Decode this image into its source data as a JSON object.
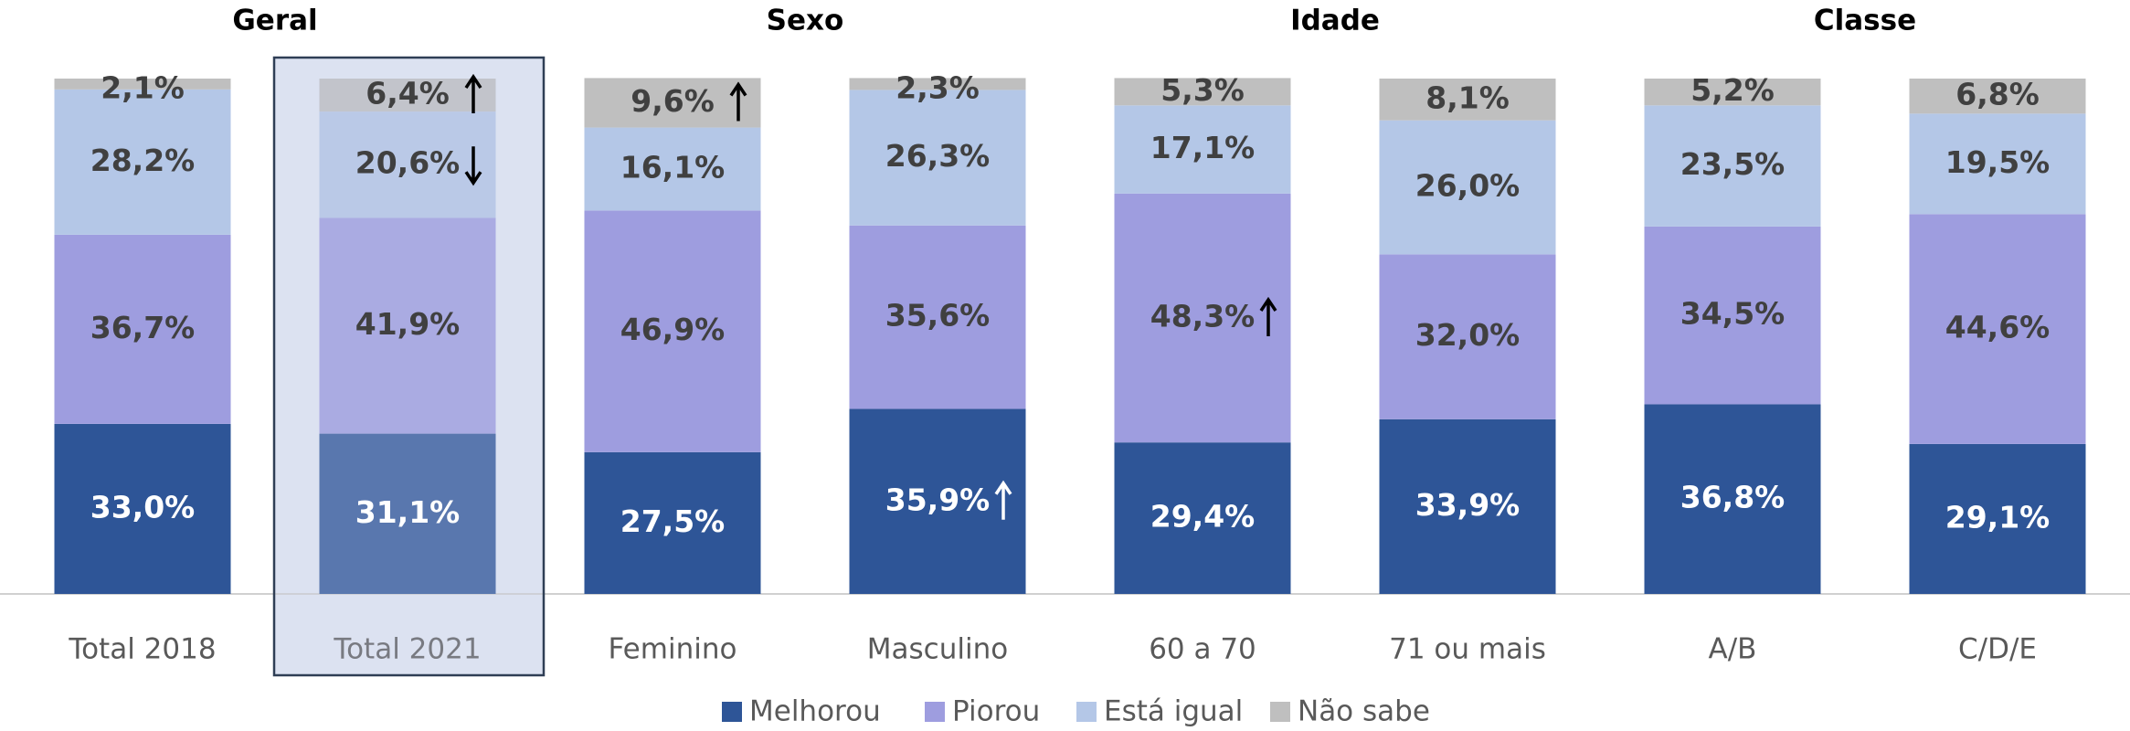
{
  "chart_data": {
    "type": "stacked_bar",
    "groups": [
      "Geral",
      "Sexo",
      "Idade",
      "Classe"
    ],
    "categories": [
      "Total 2018",
      "Total 2021",
      "Feminino",
      "Masculino",
      "60 a 70",
      "71 ou mais",
      "A/B",
      "C/D/E"
    ],
    "ylim": [
      0,
      100
    ],
    "series": [
      {
        "name": "Melhorou",
        "color": "#2e5597",
        "values": [
          33.0,
          31.1,
          27.5,
          35.9,
          29.4,
          33.9,
          36.8,
          29.1
        ],
        "value_labels": [
          "33,0%",
          "31,1%",
          "27,5%",
          "35,9%",
          "29,4%",
          "33,9%",
          "36,8%",
          "29,1%"
        ]
      },
      {
        "name": "Piorou",
        "color": "#9e9ddf",
        "values": [
          36.7,
          41.9,
          46.9,
          35.6,
          48.3,
          32.0,
          34.5,
          44.6
        ],
        "value_labels": [
          "36,7%",
          "41,9%",
          "46,9%",
          "35,6%",
          "48,3%",
          "32,0%",
          "34,5%",
          "44,6%"
        ]
      },
      {
        "name": "Está igual",
        "color": "#b4c7e7",
        "values": [
          28.2,
          20.6,
          16.1,
          26.3,
          17.1,
          26.0,
          23.5,
          19.5
        ],
        "value_labels": [
          "28,2%",
          "20,6%",
          "16,1%",
          "26,3%",
          "17,1%",
          "26,0%",
          "23,5%",
          "19,5%"
        ]
      },
      {
        "name": "Não sabe",
        "color": "#bfbfbf",
        "values": [
          2.1,
          6.4,
          9.6,
          2.3,
          5.3,
          8.1,
          5.2,
          6.8
        ],
        "value_labels": [
          "2,1%",
          "6,4%",
          "9,6%",
          "2,3%",
          "5,3%",
          "8,1%",
          "5,2%",
          "6,8%"
        ]
      }
    ],
    "legend": "bottom"
  }
}
